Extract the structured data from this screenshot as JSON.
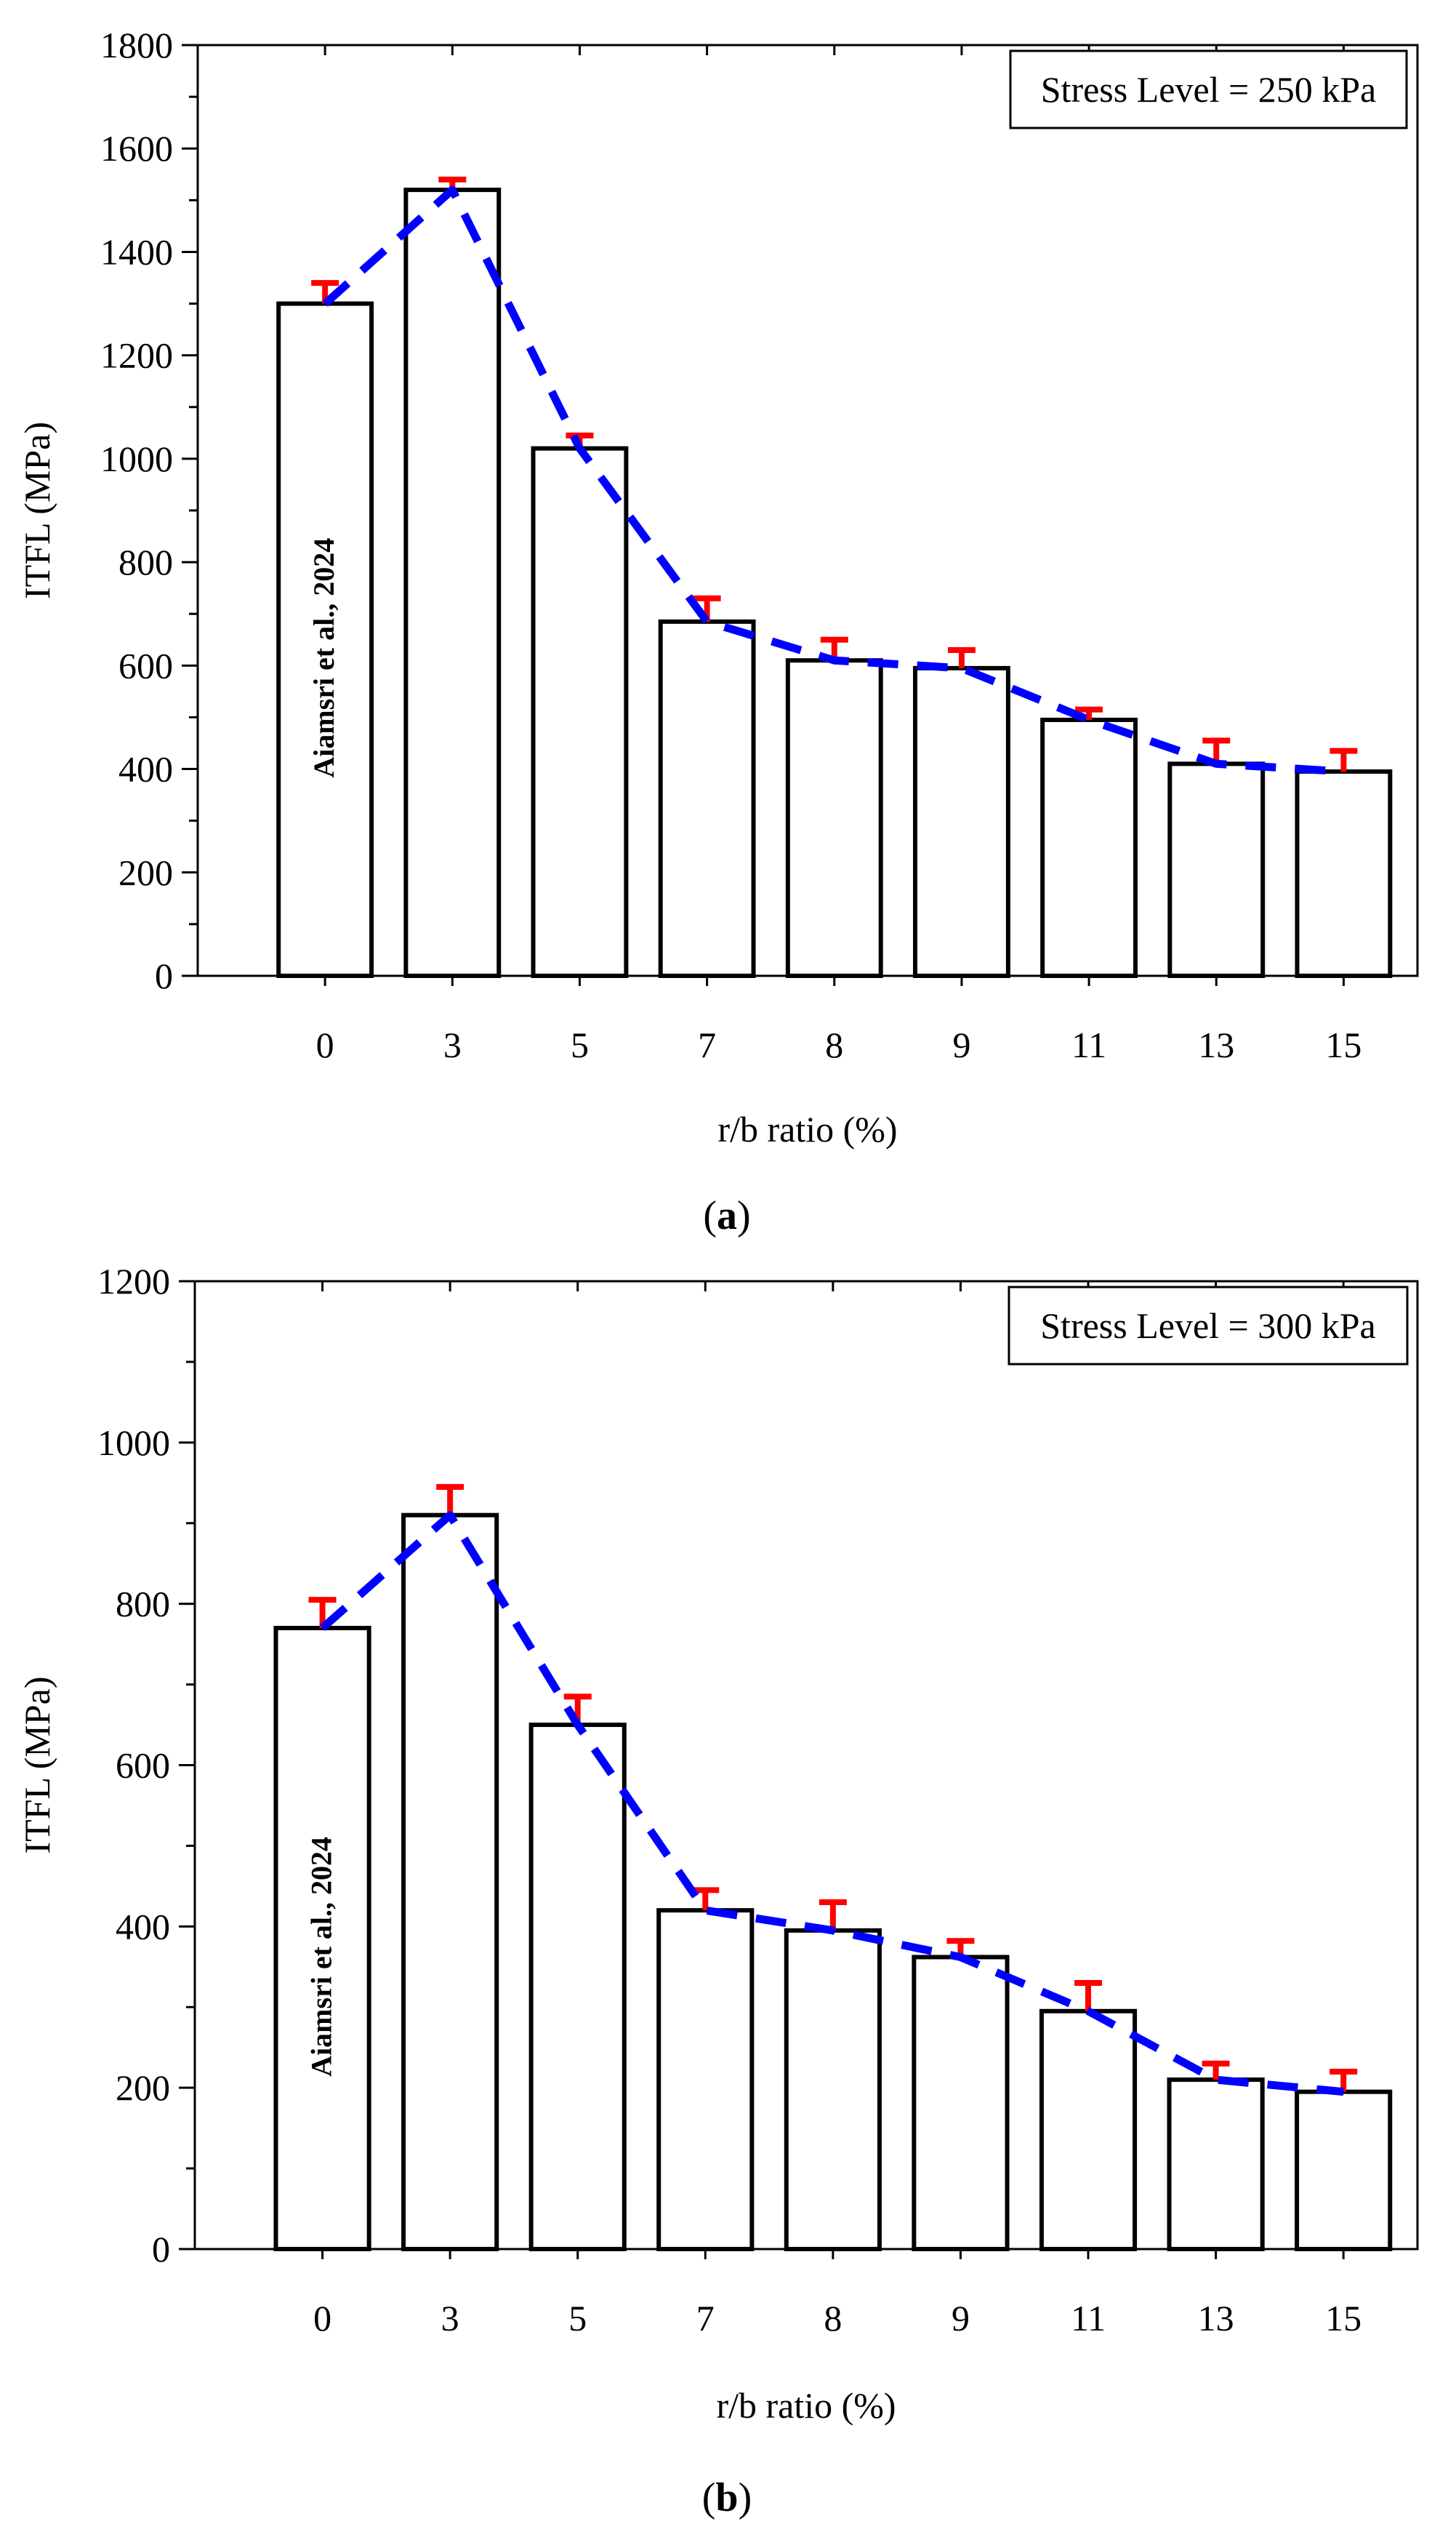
{
  "chart_data": [
    {
      "type": "bar",
      "panel": "a",
      "caption_open": "(",
      "caption_letter": "a",
      "caption_close": ")",
      "categories": [
        "0",
        "3",
        "5",
        "7",
        "8",
        "9",
        "11",
        "13",
        "15"
      ],
      "values": [
        1300,
        1520,
        1020,
        685,
        610,
        595,
        495,
        410,
        395
      ],
      "error_bars": [
        40,
        20,
        25,
        45,
        40,
        35,
        20,
        45,
        40
      ],
      "trend_line": [
        1300,
        1520,
        1020,
        685,
        610,
        595,
        495,
        410,
        395
      ],
      "xlabel": "r/b ratio (%)",
      "ylabel": "ITFL (MPa)",
      "ylim": [
        0,
        1800
      ],
      "yticks": [
        0,
        200,
        400,
        600,
        800,
        1000,
        1200,
        1400,
        1600,
        1800
      ],
      "legend": "Stress Level = 250 kPa",
      "annotation": "Aiamsri et al., 2024",
      "colors": {
        "bar_fill": "#ffffff",
        "bar_stroke": "#000000",
        "error_bar": "#ff0000",
        "trend_line": "#0000ff"
      }
    },
    {
      "type": "bar",
      "panel": "b",
      "caption_open": "(",
      "caption_letter": "b",
      "caption_close": ")",
      "categories": [
        "0",
        "3",
        "5",
        "7",
        "8",
        "9",
        "11",
        "13",
        "15"
      ],
      "values": [
        770,
        910,
        650,
        420,
        395,
        362,
        295,
        210,
        195
      ],
      "error_bars": [
        35,
        35,
        35,
        25,
        35,
        20,
        35,
        20,
        25
      ],
      "trend_line": [
        770,
        910,
        650,
        420,
        395,
        362,
        295,
        210,
        195
      ],
      "xlabel": "r/b ratio (%)",
      "ylabel": "ITFL (MPa)",
      "ylim": [
        0,
        1200
      ],
      "yticks": [
        0,
        200,
        400,
        600,
        800,
        1000,
        1200
      ],
      "legend": "Stress Level = 300 kPa",
      "annotation": "Aiamsri et al., 2024",
      "colors": {
        "bar_fill": "#ffffff",
        "bar_stroke": "#000000",
        "error_bar": "#ff0000",
        "trend_line": "#0000ff"
      }
    }
  ]
}
